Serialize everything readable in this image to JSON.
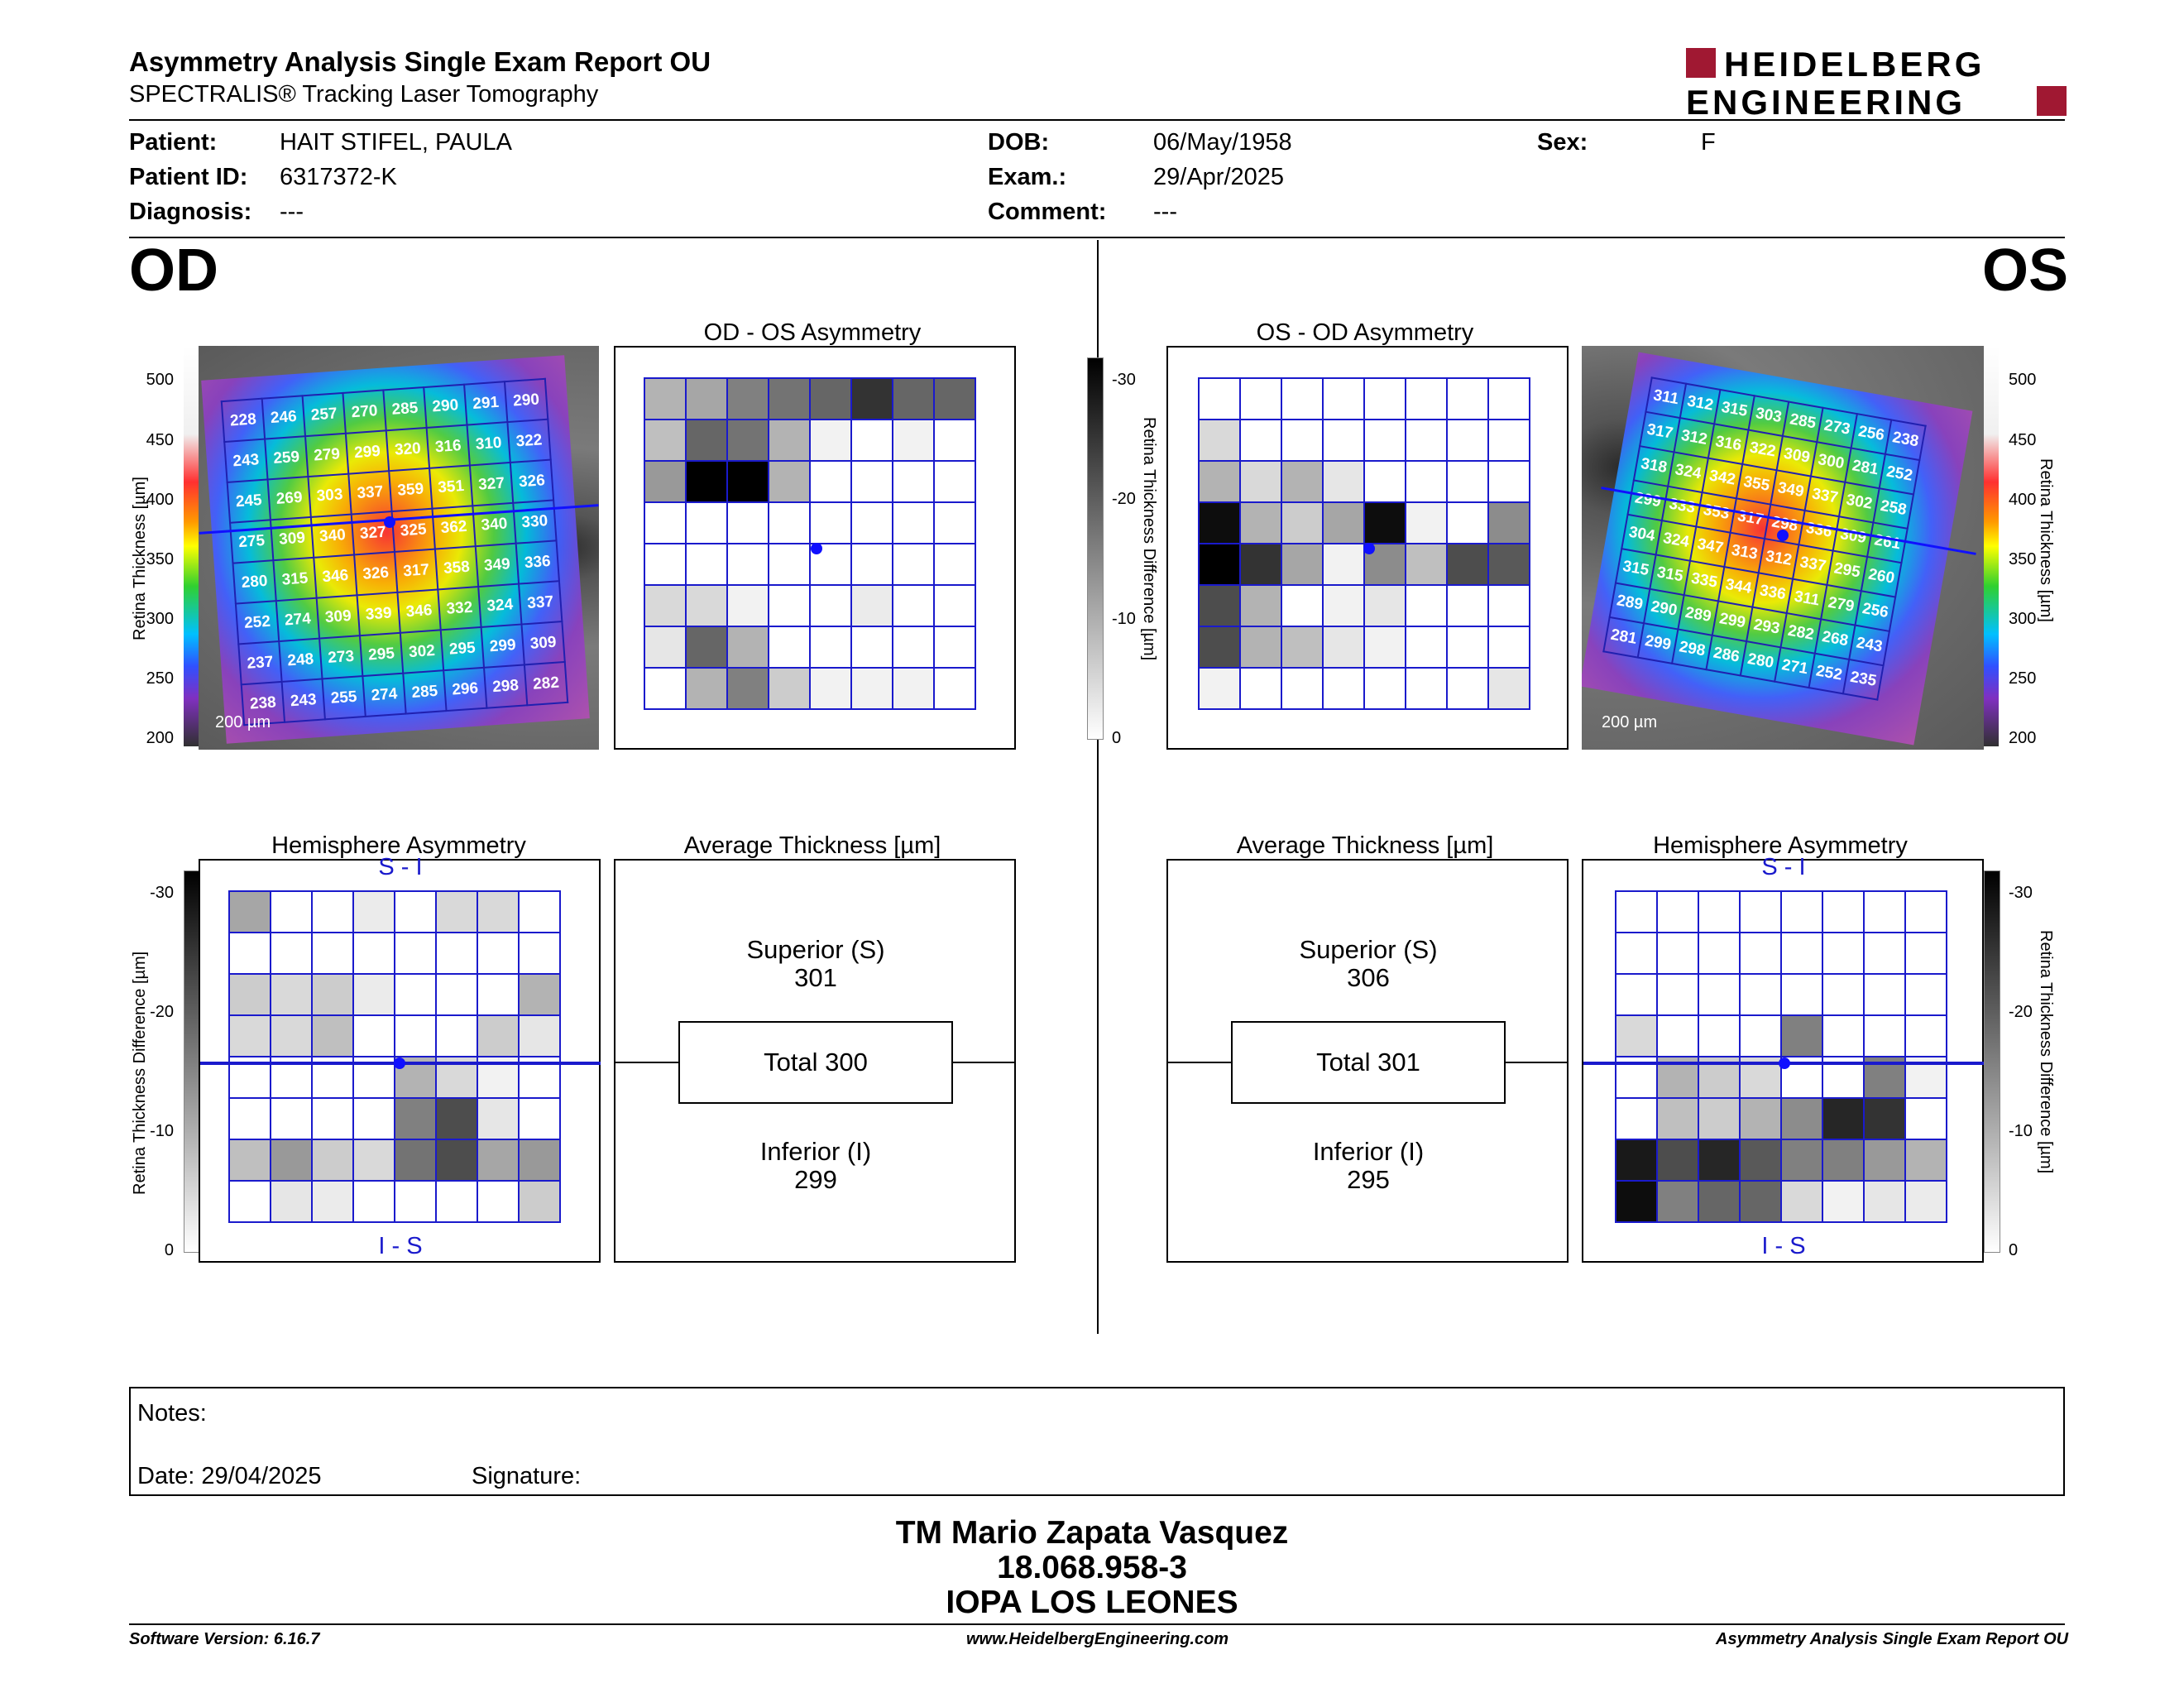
{
  "header": {
    "title": "Asymmetry Analysis Single Exam Report OU",
    "subtitle": "SPECTRALIS® Tracking Laser Tomography",
    "logo_line1": "HEIDELBERG",
    "logo_line2": "ENGINEERING"
  },
  "patient": {
    "patient_label": "Patient:",
    "patient": "HAIT STIFEL, PAULA",
    "id_label": "Patient ID:",
    "id": "6317372-K",
    "diagnosis_label": "Diagnosis:",
    "diagnosis": "---",
    "dob_label": "DOB:",
    "dob": "06/May/1958",
    "exam_label": "Exam.:",
    "exam": "29/Apr/2025",
    "comment_label": "Comment:",
    "comment": "---",
    "sex_label": "Sex:",
    "sex": "F"
  },
  "od": {
    "eye": "OD",
    "asym_title": "OD - OS Asymmetry",
    "hemi_title": "Hemisphere Asymmetry",
    "avg_title": "Average Thickness [µm]",
    "superior_label": "Superior (S)",
    "superior": "301",
    "total": "Total 300",
    "inferior_label": "Inferior (I)",
    "inferior": "299",
    "scale_label": "200 µm",
    "grid": [
      [
        "228",
        "246",
        "257",
        "270",
        "285",
        "290",
        "291",
        "290"
      ],
      [
        "243",
        "259",
        "279",
        "299",
        "320",
        "316",
        "310",
        "322"
      ],
      [
        "245",
        "269",
        "303",
        "337",
        "359",
        "351",
        "327",
        "326"
      ],
      [
        "275",
        "309",
        "340",
        "327",
        "325",
        "362",
        "340",
        "330"
      ],
      [
        "280",
        "315",
        "346",
        "326",
        "317",
        "358",
        "349",
        "336"
      ],
      [
        "252",
        "274",
        "309",
        "339",
        "346",
        "332",
        "324",
        "337"
      ],
      [
        "237",
        "248",
        "273",
        "295",
        "302",
        "295",
        "299",
        "309"
      ],
      [
        "238",
        "243",
        "255",
        "274",
        "285",
        "296",
        "298",
        "282"
      ]
    ],
    "asym_shades": [
      [
        0.3,
        0.35,
        0.5,
        0.55,
        0.6,
        0.8,
        0.6,
        0.6
      ],
      [
        0.25,
        0.6,
        0.55,
        0.3,
        0.05,
        0,
        0.05,
        0
      ],
      [
        0.4,
        1.0,
        1.0,
        0.3,
        0,
        0,
        0,
        0
      ],
      [
        0,
        0,
        0,
        0,
        0,
        0,
        0,
        0
      ],
      [
        0,
        0,
        0,
        0,
        0,
        0,
        0,
        0
      ],
      [
        0.15,
        0.15,
        0.05,
        0,
        0,
        0.08,
        0,
        0
      ],
      [
        0.1,
        0.6,
        0.3,
        0,
        0,
        0,
        0,
        0
      ],
      [
        0,
        0.3,
        0.5,
        0.2,
        0.05,
        0.05,
        0.05,
        0
      ]
    ],
    "hemi_shades": [
      [
        0.35,
        0,
        0,
        0.08,
        0,
        0.15,
        0.15,
        0
      ],
      [
        0,
        0,
        0,
        0,
        0,
        0,
        0,
        0
      ],
      [
        0.2,
        0.15,
        0.2,
        0.08,
        0,
        0,
        0,
        0.3
      ],
      [
        0.15,
        0.15,
        0.25,
        0,
        0,
        0,
        0.2,
        0.1
      ],
      [
        0,
        0,
        0,
        0,
        0.3,
        0.15,
        0.05,
        0
      ],
      [
        0,
        0,
        0,
        0,
        0.5,
        0.7,
        0.1,
        0
      ],
      [
        0.25,
        0.4,
        0.2,
        0.15,
        0.55,
        0.7,
        0.35,
        0.4
      ],
      [
        0,
        0.1,
        0.08,
        0,
        0,
        0,
        0,
        0.2
      ]
    ]
  },
  "os": {
    "eye": "OS",
    "asym_title": "OS - OD Asymmetry",
    "hemi_title": "Hemisphere Asymmetry",
    "avg_title": "Average Thickness [µm]",
    "superior_label": "Superior (S)",
    "superior": "306",
    "total": "Total 301",
    "inferior_label": "Inferior (I)",
    "inferior": "295",
    "scale_label": "200 µm",
    "grid": [
      [
        "311",
        "312",
        "315",
        "303",
        "285",
        "273",
        "256",
        "238"
      ],
      [
        "317",
        "312",
        "316",
        "322",
        "309",
        "300",
        "281",
        "252"
      ],
      [
        "318",
        "324",
        "342",
        "355",
        "349",
        "337",
        "302",
        "258"
      ],
      [
        "299",
        "333",
        "353",
        "317",
        "298",
        "336",
        "309",
        "261"
      ],
      [
        "304",
        "324",
        "347",
        "313",
        "312",
        "337",
        "295",
        "260"
      ],
      [
        "315",
        "315",
        "335",
        "344",
        "336",
        "311",
        "279",
        "256"
      ],
      [
        "289",
        "290",
        "289",
        "299",
        "293",
        "282",
        "268",
        "243"
      ],
      [
        "281",
        "299",
        "298",
        "286",
        "280",
        "271",
        "252",
        "235"
      ]
    ],
    "asym_shades": [
      [
        0,
        0,
        0,
        0,
        0,
        0,
        0,
        0
      ],
      [
        0.15,
        0,
        0,
        0,
        0,
        0,
        0,
        0
      ],
      [
        0.3,
        0.15,
        0.3,
        0.1,
        0,
        0,
        0,
        0
      ],
      [
        0.95,
        0.3,
        0.2,
        0.35,
        0.95,
        0.05,
        0,
        0.45
      ],
      [
        1.0,
        0.8,
        0.35,
        0.05,
        0.45,
        0.25,
        0.7,
        0.65
      ],
      [
        0.7,
        0.3,
        0,
        0.05,
        0.1,
        0,
        0,
        0
      ],
      [
        0.7,
        0.3,
        0.25,
        0.1,
        0.05,
        0,
        0,
        0
      ],
      [
        0.05,
        0,
        0,
        0,
        0,
        0,
        0,
        0.1
      ]
    ],
    "hemi_shades": [
      [
        0,
        0,
        0,
        0,
        0,
        0,
        0,
        0
      ],
      [
        0,
        0,
        0,
        0,
        0,
        0,
        0,
        0
      ],
      [
        0,
        0,
        0,
        0,
        0,
        0,
        0,
        0
      ],
      [
        0.15,
        0,
        0,
        0,
        0.5,
        0,
        0,
        0
      ],
      [
        0,
        0.3,
        0.2,
        0.15,
        0,
        0,
        0.5,
        0.05
      ],
      [
        0,
        0.25,
        0.2,
        0.3,
        0.45,
        0.85,
        0.8,
        0
      ],
      [
        0.9,
        0.7,
        0.85,
        0.65,
        0.5,
        0.5,
        0.4,
        0.3
      ],
      [
        0.95,
        0.5,
        0.6,
        0.6,
        0.15,
        0.05,
        0.1,
        0.08
      ]
    ]
  },
  "axes": {
    "thickness_label": "Retina  Thickness [µm]",
    "thickness_label_os": "Retina  Thickness [µm]",
    "diff_label": "Retina Thickness Difference [µm]",
    "thickness_ticks": [
      "500",
      "450",
      "400",
      "350",
      "300",
      "250",
      "200"
    ],
    "diff_ticks": [
      "-30",
      "-20",
      "-10",
      "0"
    ],
    "s_i": "S - I",
    "i_s": "I - S"
  },
  "notes": {
    "label": "Notes:",
    "date": "Date: 29/04/2025",
    "signature": "Signature:"
  },
  "signature_block": {
    "name": "TM Mario Zapata Vasquez",
    "rut": "18.068.958-3",
    "clinic": "IOPA LOS LEONES"
  },
  "footer": {
    "software": "Software Version: 6.16.7",
    "url": "www.HeidelbergEngineering.com",
    "report": "Asymmetry Analysis Single Exam Report OU"
  },
  "colors": {
    "grid_blue": "#1a1acc",
    "logo_red": "#a01832"
  }
}
